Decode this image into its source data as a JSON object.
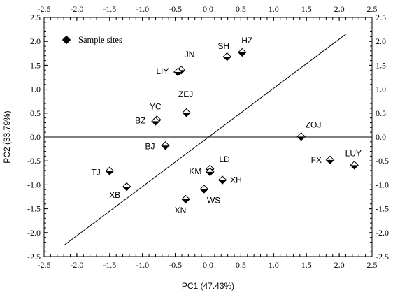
{
  "chart_data": {
    "type": "scatter",
    "title": "",
    "xlabel": "PC1 (47.43%)",
    "ylabel": "PC2 (33.79%)",
    "xlim": [
      -2.5,
      2.5
    ],
    "ylim": [
      -2.5,
      2.5
    ],
    "xticks": [
      "-2.5",
      "-2.0",
      "-1.5",
      "-1.0",
      "-0.5",
      "0.0",
      "0.5",
      "1.0",
      "1.5",
      "2.0",
      "2.5"
    ],
    "yticks": [
      "2.5",
      "2.0",
      "1.5",
      "1.0",
      "0.5",
      "0.0",
      "-0.5",
      "-1.0",
      "-1.5",
      "-2.0",
      "-2.5"
    ],
    "grid": false,
    "legend": {
      "placement": "top-left",
      "entries": [
        "Sample sites"
      ]
    },
    "reference_line": {
      "from": [
        -2.2,
        -2.27
      ],
      "to": [
        2.1,
        2.15
      ]
    },
    "series": [
      {
        "name": "Sample sites",
        "marker": "diamond",
        "points": [
          {
            "label": "SH",
            "x": 0.29,
            "y": 1.68
          },
          {
            "label": "HZ",
            "x": 0.52,
            "y": 1.77
          },
          {
            "label": "JN",
            "x": -0.41,
            "y": 1.4
          },
          {
            "label": "LIY",
            "x": -0.46,
            "y": 1.36
          },
          {
            "label": "ZEJ",
            "x": -0.33,
            "y": 0.51
          },
          {
            "label": "YC",
            "x": -0.78,
            "y": 0.36
          },
          {
            "label": "BZ",
            "x": -0.8,
            "y": 0.33
          },
          {
            "label": "BJ",
            "x": -0.65,
            "y": -0.18
          },
          {
            "label": "ZOJ",
            "x": 1.42,
            "y": 0.01
          },
          {
            "label": "FX",
            "x": 1.86,
            "y": -0.48
          },
          {
            "label": "LUY",
            "x": 2.23,
            "y": -0.59
          },
          {
            "label": "LD",
            "x": 0.03,
            "y": -0.67
          },
          {
            "label": "KM",
            "x": 0.03,
            "y": -0.73
          },
          {
            "label": "XH",
            "x": 0.22,
            "y": -0.9
          },
          {
            "label": "WS",
            "x": -0.06,
            "y": -1.09
          },
          {
            "label": "TJ",
            "x": -1.5,
            "y": -0.71
          },
          {
            "label": "XB",
            "x": -1.24,
            "y": -1.04
          },
          {
            "label": "XN",
            "x": -0.34,
            "y": -1.3
          }
        ]
      }
    ]
  }
}
